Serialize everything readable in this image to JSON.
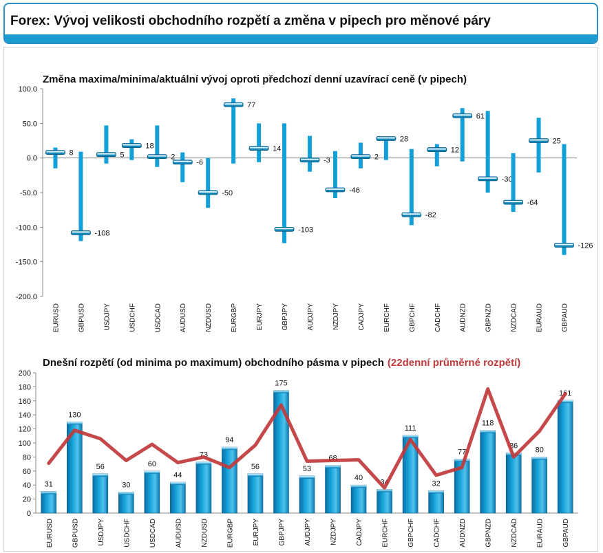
{
  "header": {
    "title": "Forex: Vývoj velikosti obchodního rozpětí a změna v pipech pro měnové páry"
  },
  "colors": {
    "accent": "#1a9bd2",
    "bar": "#13a0d8",
    "bar_dark": "#0b6ea3",
    "avg_line": "#c0393b",
    "header_border": "#2a8fc4"
  },
  "chart_data": [
    {
      "type": "bar",
      "title": "Změna maxima/minima/aktuální vývoj oproti předchozí denní uzavírací ceně (v pipech)",
      "ylim": [
        -200,
        100
      ],
      "yticks": [
        100,
        50,
        0,
        -50,
        -100,
        -150,
        -200
      ],
      "ytick_labels": [
        "100.0",
        "50.0",
        "0.0",
        "-50.0",
        "-100.0",
        "-150.0",
        "-200.0"
      ],
      "categories": [
        "EURUSD",
        "GBPUSD",
        "USDJPY",
        "USDCHF",
        "USDCAD",
        "AUDUSD",
        "NZDUSD",
        "EURGBP",
        "EURJPY",
        "GBPJPY",
        "AUDJPY",
        "NZDJPY",
        "CADJPY",
        "EURCHF",
        "GBPCHF",
        "CADCHF",
        "AUDNZD",
        "GBPNZD",
        "NZDCAD",
        "EURAUD",
        "GBPAUD"
      ],
      "high": [
        15,
        9,
        47,
        27,
        47,
        8,
        0,
        86,
        50,
        50,
        32,
        10,
        22,
        30,
        13,
        20,
        72,
        68,
        7,
        58,
        20
      ],
      "low": [
        -15,
        -120,
        -8,
        -3,
        -13,
        -35,
        -72,
        -8,
        -6,
        -123,
        -20,
        -58,
        -15,
        -3,
        -97,
        -12,
        -5,
        -50,
        -78,
        -21,
        -140
      ],
      "current": [
        8,
        -108,
        5,
        18,
        2,
        -6,
        -50,
        77,
        14,
        -103,
        -3,
        -46,
        2,
        28,
        -82,
        12,
        61,
        -30,
        -64,
        25,
        -126
      ],
      "current_labels": [
        "8",
        "-108",
        "5",
        "18",
        "2",
        "-6",
        "-50",
        "77",
        "14",
        "-103",
        "-3",
        "-46",
        "2",
        "28",
        "-82",
        "12",
        "61",
        "-30",
        "-64",
        "25",
        "-126"
      ],
      "grid": false,
      "legend": "none"
    },
    {
      "type": "bar",
      "title": "Dnešní rozpětí (od minima po maximum) obchodního pásma v pipech",
      "title_suffix": "(22denní průměrné rozpětí)",
      "ylim": [
        0,
        200
      ],
      "yticks": [
        200,
        180,
        160,
        140,
        120,
        100,
        80,
        60,
        40,
        20,
        0
      ],
      "categories": [
        "EURUSD",
        "GBPUSD",
        "USDJPY",
        "USDCHF",
        "USDCAD",
        "AUDUSD",
        "NZDUSD",
        "EURGBP",
        "EURJPY",
        "GBPJPY",
        "AUDJPY",
        "NZDJPY",
        "CADJPY",
        "EURCHF",
        "GBPCHF",
        "CADCHF",
        "AUDNZD",
        "GBPNZD",
        "NZDCAD",
        "EURAUD",
        "GBPAUD"
      ],
      "values": [
        31,
        130,
        56,
        30,
        60,
        44,
        73,
        94,
        56,
        175,
        53,
        68,
        40,
        34,
        111,
        32,
        77,
        118,
        86,
        80,
        161
      ],
      "value_labels": [
        "31",
        "130",
        "56",
        "30",
        "60",
        "44",
        "73",
        "94",
        "56",
        "175",
        "53",
        "68",
        "40",
        "34",
        "111",
        "32",
        "77",
        "118",
        "86",
        "80",
        "161"
      ],
      "avg22": [
        71,
        118,
        106,
        75,
        98,
        72,
        80,
        65,
        97,
        154,
        74,
        75,
        76,
        36,
        105,
        54,
        65,
        177,
        80,
        117,
        170
      ],
      "grid": false,
      "legend": "none"
    }
  ]
}
